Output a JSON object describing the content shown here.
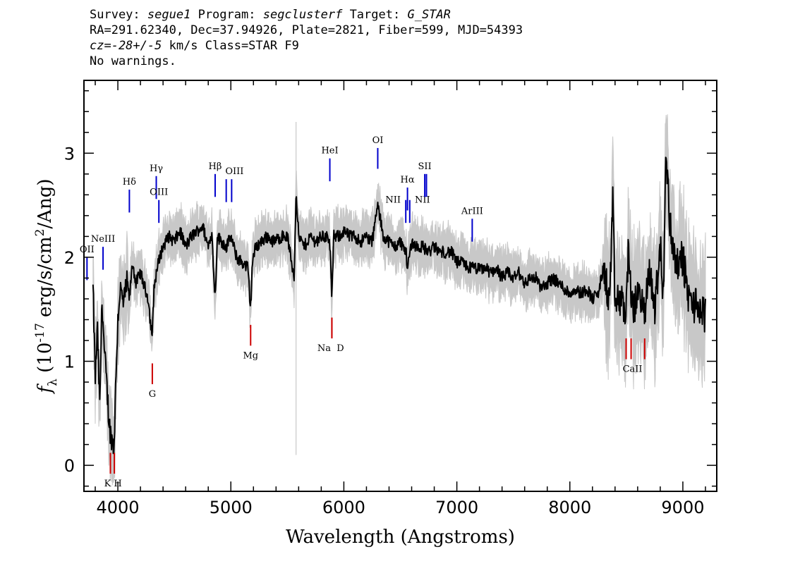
{
  "header": {
    "line1": {
      "survey_label": "Survey:",
      "survey": "segue1",
      "program_label": "Program:",
      "program": "segclusterf",
      "target_label": "Target:",
      "target": "G_STAR"
    },
    "line2": "RA=291.62340, Dec=37.94926, Plate=2821, Fiber=599, MJD=54393",
    "line3": {
      "cz_italic": "cz=-28+/-5",
      "rest": " km/s Class=STAR F9"
    },
    "line4": "No warnings."
  },
  "chart_data": {
    "type": "line",
    "title": "",
    "xlabel": "Wavelength (Angstroms)",
    "ylabel": "f_λ (10^-17 erg/s/cm^2/Ang)",
    "xlim": [
      3700,
      9300
    ],
    "ylim": [
      -0.25,
      3.7
    ],
    "x_ticks": [
      4000,
      5000,
      6000,
      7000,
      8000,
      9000
    ],
    "y_ticks": [
      0,
      1,
      2,
      3
    ],
    "grid": false,
    "legend": "none",
    "colors": {
      "flux": "#000000",
      "noise": "#c8c8c8",
      "emission": "#0000cc",
      "absorption": "#cc0000"
    },
    "series": [
      {
        "role": "flux",
        "x": [
          3780,
          3800,
          3820,
          3840,
          3860,
          3880,
          3900,
          3920,
          3935,
          3950,
          3965,
          3985,
          4000,
          4020,
          4050,
          4080,
          4102,
          4130,
          4160,
          4200,
          4240,
          4270,
          4290,
          4305,
          4320,
          4340,
          4370,
          4400,
          4450,
          4500,
          4550,
          4600,
          4650,
          4700,
          4750,
          4800,
          4830,
          4861,
          4880,
          4920,
          4960,
          5000,
          5050,
          5100,
          5150,
          5175,
          5190,
          5220,
          5270,
          5320,
          5380,
          5450,
          5500,
          5560,
          5577,
          5600,
          5650,
          5700,
          5750,
          5800,
          5850,
          5880,
          5893,
          5910,
          5950,
          6000,
          6050,
          6100,
          6150,
          6200,
          6250,
          6300,
          6350,
          6400,
          6450,
          6500,
          6550,
          6563,
          6600,
          6650,
          6700,
          6750,
          6800,
          6850,
          6900,
          6950,
          7000,
          7050,
          7100,
          7150,
          7200,
          7250,
          7300,
          7350,
          7400,
          7450,
          7500,
          7550,
          7600,
          7650,
          7700,
          7750,
          7800,
          7850,
          7900,
          7950,
          8000,
          8050,
          8100,
          8150,
          8200,
          8250,
          8300,
          8350,
          8380,
          8400,
          8450,
          8498,
          8520,
          8542,
          8580,
          8620,
          8662,
          8700,
          8750,
          8800,
          8830,
          8850,
          8880,
          8900,
          8950,
          9000,
          9050,
          9100,
          9150,
          9200
        ],
        "y": [
          1.7,
          0.85,
          1.3,
          0.55,
          1.6,
          1.1,
          0.8,
          0.45,
          0.3,
          0.25,
          0.15,
          0.9,
          1.4,
          1.7,
          1.55,
          1.75,
          1.6,
          1.95,
          1.75,
          1.85,
          1.7,
          1.6,
          1.35,
          1.25,
          1.7,
          1.85,
          2.0,
          2.1,
          2.2,
          2.15,
          2.25,
          2.1,
          2.2,
          2.25,
          2.3,
          2.1,
          2.25,
          1.6,
          2.2,
          2.15,
          2.1,
          2.2,
          2.0,
          1.95,
          1.9,
          1.5,
          1.95,
          2.1,
          2.15,
          2.2,
          2.15,
          2.2,
          2.2,
          1.8,
          2.65,
          2.2,
          2.1,
          2.2,
          2.15,
          2.2,
          2.2,
          2.1,
          1.55,
          2.2,
          2.2,
          2.25,
          2.2,
          2.2,
          2.15,
          2.2,
          2.15,
          2.5,
          2.2,
          2.15,
          2.1,
          2.15,
          2.05,
          1.9,
          2.15,
          2.1,
          2.1,
          2.05,
          2.1,
          2.05,
          2.05,
          2.05,
          1.95,
          1.95,
          1.9,
          1.9,
          1.88,
          1.9,
          1.85,
          1.9,
          1.8,
          1.85,
          1.8,
          1.85,
          1.75,
          1.8,
          1.8,
          1.7,
          1.75,
          1.8,
          1.75,
          1.7,
          1.65,
          1.7,
          1.65,
          1.7,
          1.6,
          1.65,
          1.9,
          1.55,
          2.5,
          1.55,
          1.6,
          1.45,
          2.2,
          1.5,
          1.55,
          1.7,
          1.4,
          1.9,
          1.5,
          2.1,
          1.6,
          3.1,
          2.4,
          2.2,
          1.9,
          2.0,
          1.6,
          1.55,
          1.5,
          1.45
        ]
      }
    ],
    "line_markers": [
      {
        "label": "OII",
        "wave": 3727,
        "kind": "emission"
      },
      {
        "label": "NeIII",
        "wave": 3869,
        "kind": "emission"
      },
      {
        "label": "Hδ",
        "wave": 4102,
        "kind": "emission"
      },
      {
        "label": "Hγ",
        "wave": 4340,
        "kind": "emission"
      },
      {
        "label": "OIII",
        "wave": 4363,
        "kind": "emission"
      },
      {
        "label": "Hβ",
        "wave": 4861,
        "kind": "emission"
      },
      {
        "label": "OIII",
        "wave": 4959,
        "kind": "emission"
      },
      {
        "label": "OIII",
        "wave": 5007,
        "kind": "emission"
      },
      {
        "label": "HeI",
        "wave": 5876,
        "kind": "emission"
      },
      {
        "label": "OI",
        "wave": 6300,
        "kind": "emission"
      },
      {
        "label": "NII",
        "wave": 6548,
        "kind": "emission"
      },
      {
        "label": "Hα",
        "wave": 6563,
        "kind": "emission"
      },
      {
        "label": "NII",
        "wave": 6583,
        "kind": "emission"
      },
      {
        "label": "SII",
        "wave": 6716,
        "kind": "emission"
      },
      {
        "label": "SII",
        "wave": 6731,
        "kind": "emission"
      },
      {
        "label": "ArIII",
        "wave": 7136,
        "kind": "emission"
      },
      {
        "label": "K",
        "wave": 3934,
        "kind": "absorption"
      },
      {
        "label": "H",
        "wave": 3969,
        "kind": "absorption"
      },
      {
        "label": "G",
        "wave": 4305,
        "kind": "absorption"
      },
      {
        "label": "Mg",
        "wave": 5175,
        "kind": "absorption"
      },
      {
        "label": "Na",
        "wave": 5894,
        "kind": "absorption"
      },
      {
        "label": "D",
        "wave": 5894,
        "kind": "absorption"
      },
      {
        "label": "CaII",
        "wave": 8498,
        "kind": "absorption"
      },
      {
        "label": "CaII",
        "wave": 8542,
        "kind": "absorption"
      },
      {
        "label": "CaII",
        "wave": 8662,
        "kind": "absorption"
      }
    ]
  }
}
